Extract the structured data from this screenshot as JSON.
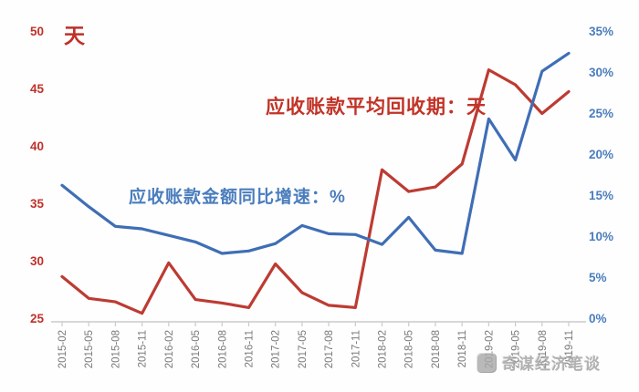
{
  "chart_data": {
    "type": "line",
    "title": "",
    "categories": [
      "2015-02",
      "2015-05",
      "2015-08",
      "2015-11",
      "2016-02",
      "2016-05",
      "2016-08",
      "2016-11",
      "2017-02",
      "2017-05",
      "2017-08",
      "2017-11",
      "2018-02",
      "2018-05",
      "2018-08",
      "2018-11",
      "2019-02",
      "2019-05",
      "2019-08",
      "2019-11"
    ],
    "series": [
      {
        "name": "应收账款平均回收期：天",
        "axis": "left",
        "color": "#bd3b32",
        "values": [
          28.7,
          26.8,
          26.5,
          25.5,
          29.9,
          26.7,
          26.4,
          26.0,
          29.8,
          27.3,
          26.2,
          26.0,
          38.0,
          36.1,
          36.5,
          38.5,
          46.7,
          45.4,
          42.9,
          44.8
        ]
      },
      {
        "name": "应收账款金额同比增速：%",
        "axis": "right",
        "color": "#3f6eb5",
        "values": [
          16.3,
          13.7,
          11.3,
          11.0,
          10.2,
          9.4,
          8.0,
          8.3,
          9.2,
          11.4,
          10.4,
          10.3,
          9.1,
          12.4,
          8.4,
          8.0,
          24.4,
          19.4,
          30.2,
          32.4
        ]
      }
    ],
    "left_axis": {
      "title": "天",
      "min": 25,
      "max": 50,
      "step": 5,
      "ticks": [
        "25",
        "30",
        "35",
        "40",
        "45",
        "50"
      ],
      "color": "#bf3129"
    },
    "right_axis": {
      "min": 0,
      "max": 35,
      "step": 5,
      "ticks": [
        "0%",
        "5%",
        "10%",
        "15%",
        "20%",
        "25%",
        "30%",
        "35%"
      ],
      "color": "#4a7dbd"
    },
    "x_axis": {
      "labels_rotated": true,
      "label_color": "#7a7a7a",
      "line_color": "#cbcbcb"
    },
    "grid": false,
    "legend_position": "inline-annotations"
  },
  "watermark": {
    "text": "奇谋经济笔谈",
    "color": "#9e9e9e"
  }
}
